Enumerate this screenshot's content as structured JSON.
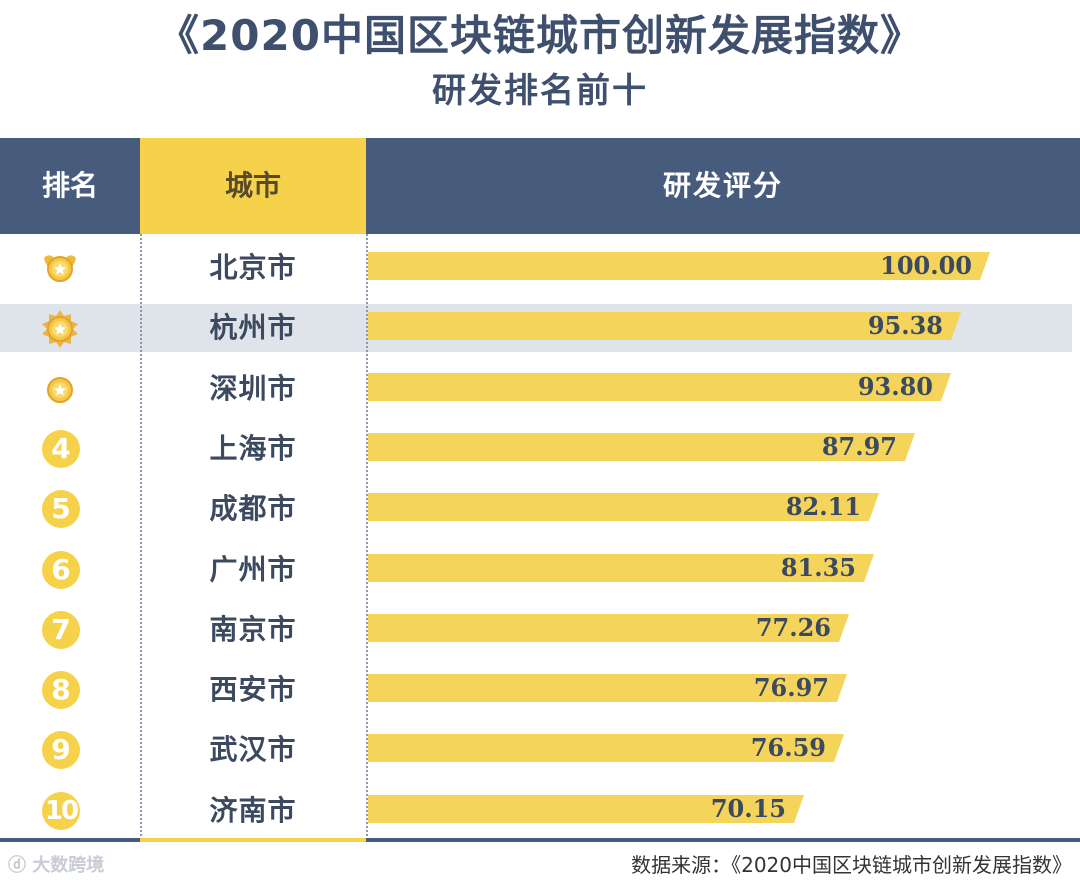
{
  "chart_data": {
    "type": "bar",
    "title": "《2020中国区块链城市创新发展指数》",
    "subtitle": "研发排名前十",
    "columns": {
      "rank": "排名",
      "city": "城市",
      "score": "研发评分"
    },
    "categories": [
      "北京市",
      "杭州市",
      "深圳市",
      "上海市",
      "成都市",
      "广州市",
      "南京市",
      "西安市",
      "武汉市",
      "济南市"
    ],
    "ranks": [
      "1",
      "2",
      "3",
      "4",
      "5",
      "6",
      "7",
      "8",
      "9",
      "10"
    ],
    "values": [
      100.0,
      95.38,
      93.8,
      87.97,
      82.11,
      81.35,
      77.26,
      76.97,
      76.59,
      70.15
    ],
    "value_labels": [
      "100.00",
      "95.38",
      "93.80",
      "87.97",
      "82.11",
      "81.35",
      "77.26",
      "76.97",
      "76.59",
      "70.15"
    ],
    "highlighted_row": 1,
    "xlim": [
      0,
      100
    ]
  },
  "footer": {
    "brand": "大数跨境",
    "source": "数据来源：《2020中国区块链城市创新发展指数》"
  },
  "colors": {
    "header": "#475b7c",
    "accent": "#f5d24a",
    "bar": "#f4d45a",
    "highlight_row": "#dfe3ea",
    "text": "#3c4a60"
  }
}
